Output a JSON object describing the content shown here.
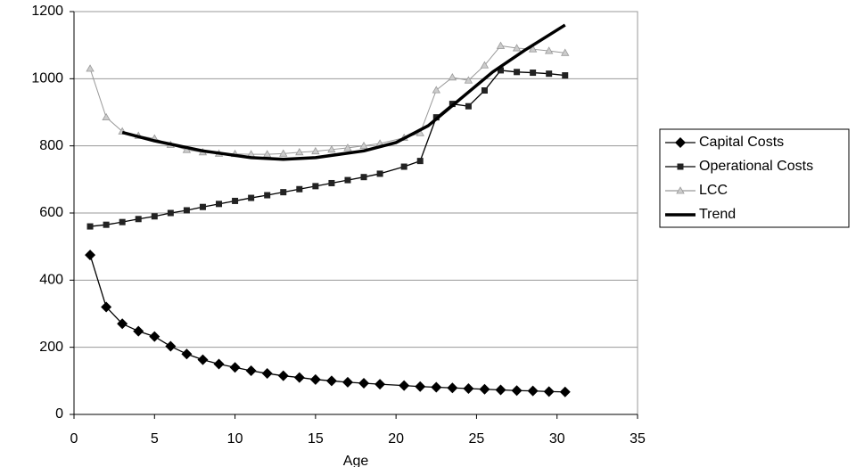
{
  "chart_data": {
    "type": "line",
    "x_label": "Age",
    "xlim": [
      0,
      35
    ],
    "xticks": [
      0,
      5,
      10,
      15,
      20,
      25,
      30,
      35
    ],
    "ylim": [
      0,
      1200
    ],
    "yticks": [
      0,
      200,
      400,
      600,
      800,
      1000,
      1200
    ],
    "grid": true,
    "legend": "right",
    "series": [
      {
        "name": "Capital Costs",
        "color": "#000000",
        "marker": "diamond",
        "x": [
          1,
          2,
          3,
          4,
          5,
          6,
          7,
          8,
          9,
          10,
          11,
          12,
          13,
          14,
          15,
          16,
          17,
          18,
          19,
          20.5,
          21.5,
          22.5,
          23.5,
          24.5,
          25.5,
          26.5,
          27.5,
          28.5,
          29.5,
          30.5
        ],
        "values": [
          475,
          320,
          270,
          248,
          232,
          203,
          180,
          163,
          150,
          140,
          130,
          122,
          115,
          110,
          104,
          100,
          96,
          93,
          90,
          86,
          83,
          81,
          79,
          77,
          75,
          73,
          71,
          70,
          68,
          67
        ]
      },
      {
        "name": "Operational Costs",
        "color": "#000000",
        "marker": "square",
        "x": [
          1,
          2,
          3,
          4,
          5,
          6,
          7,
          8,
          9,
          10,
          11,
          12,
          13,
          14,
          15,
          16,
          17,
          18,
          19,
          20.5,
          21.5,
          22.5,
          23.5,
          24.5,
          25.5,
          26.5,
          27.5,
          28.5,
          29.5,
          30.5
        ],
        "values": [
          560,
          565,
          573,
          582,
          590,
          600,
          608,
          618,
          627,
          636,
          645,
          653,
          662,
          671,
          680,
          689,
          698,
          707,
          717,
          738,
          755,
          885,
          925,
          918,
          965,
          1025,
          1020,
          1018,
          1015,
          1010
        ]
      },
      {
        "name": "LCC",
        "color": "#999999",
        "marker": "triangle",
        "x": [
          1,
          2,
          3,
          4,
          5,
          6,
          7,
          8,
          9,
          10,
          11,
          12,
          13,
          14,
          15,
          16,
          17,
          18,
          19,
          20.5,
          21.5,
          22.5,
          23.5,
          24.5,
          25.5,
          26.5,
          27.5,
          28.5,
          29.5,
          30.5
        ],
        "values": [
          1030,
          885,
          843,
          830,
          822,
          803,
          788,
          781,
          777,
          776,
          775,
          775,
          777,
          781,
          784,
          789,
          794,
          800,
          807,
          824,
          838,
          966,
          1004,
          995,
          1040,
          1098,
          1091,
          1088,
          1083,
          1077
        ]
      },
      {
        "name": "Trend",
        "color": "#000000",
        "marker": "none",
        "x": [
          3,
          5,
          8,
          11,
          13,
          15,
          18,
          20,
          22,
          24,
          26,
          28,
          30.5
        ],
        "values": [
          840,
          815,
          785,
          765,
          760,
          765,
          785,
          810,
          860,
          940,
          1020,
          1085,
          1160
        ]
      }
    ]
  }
}
